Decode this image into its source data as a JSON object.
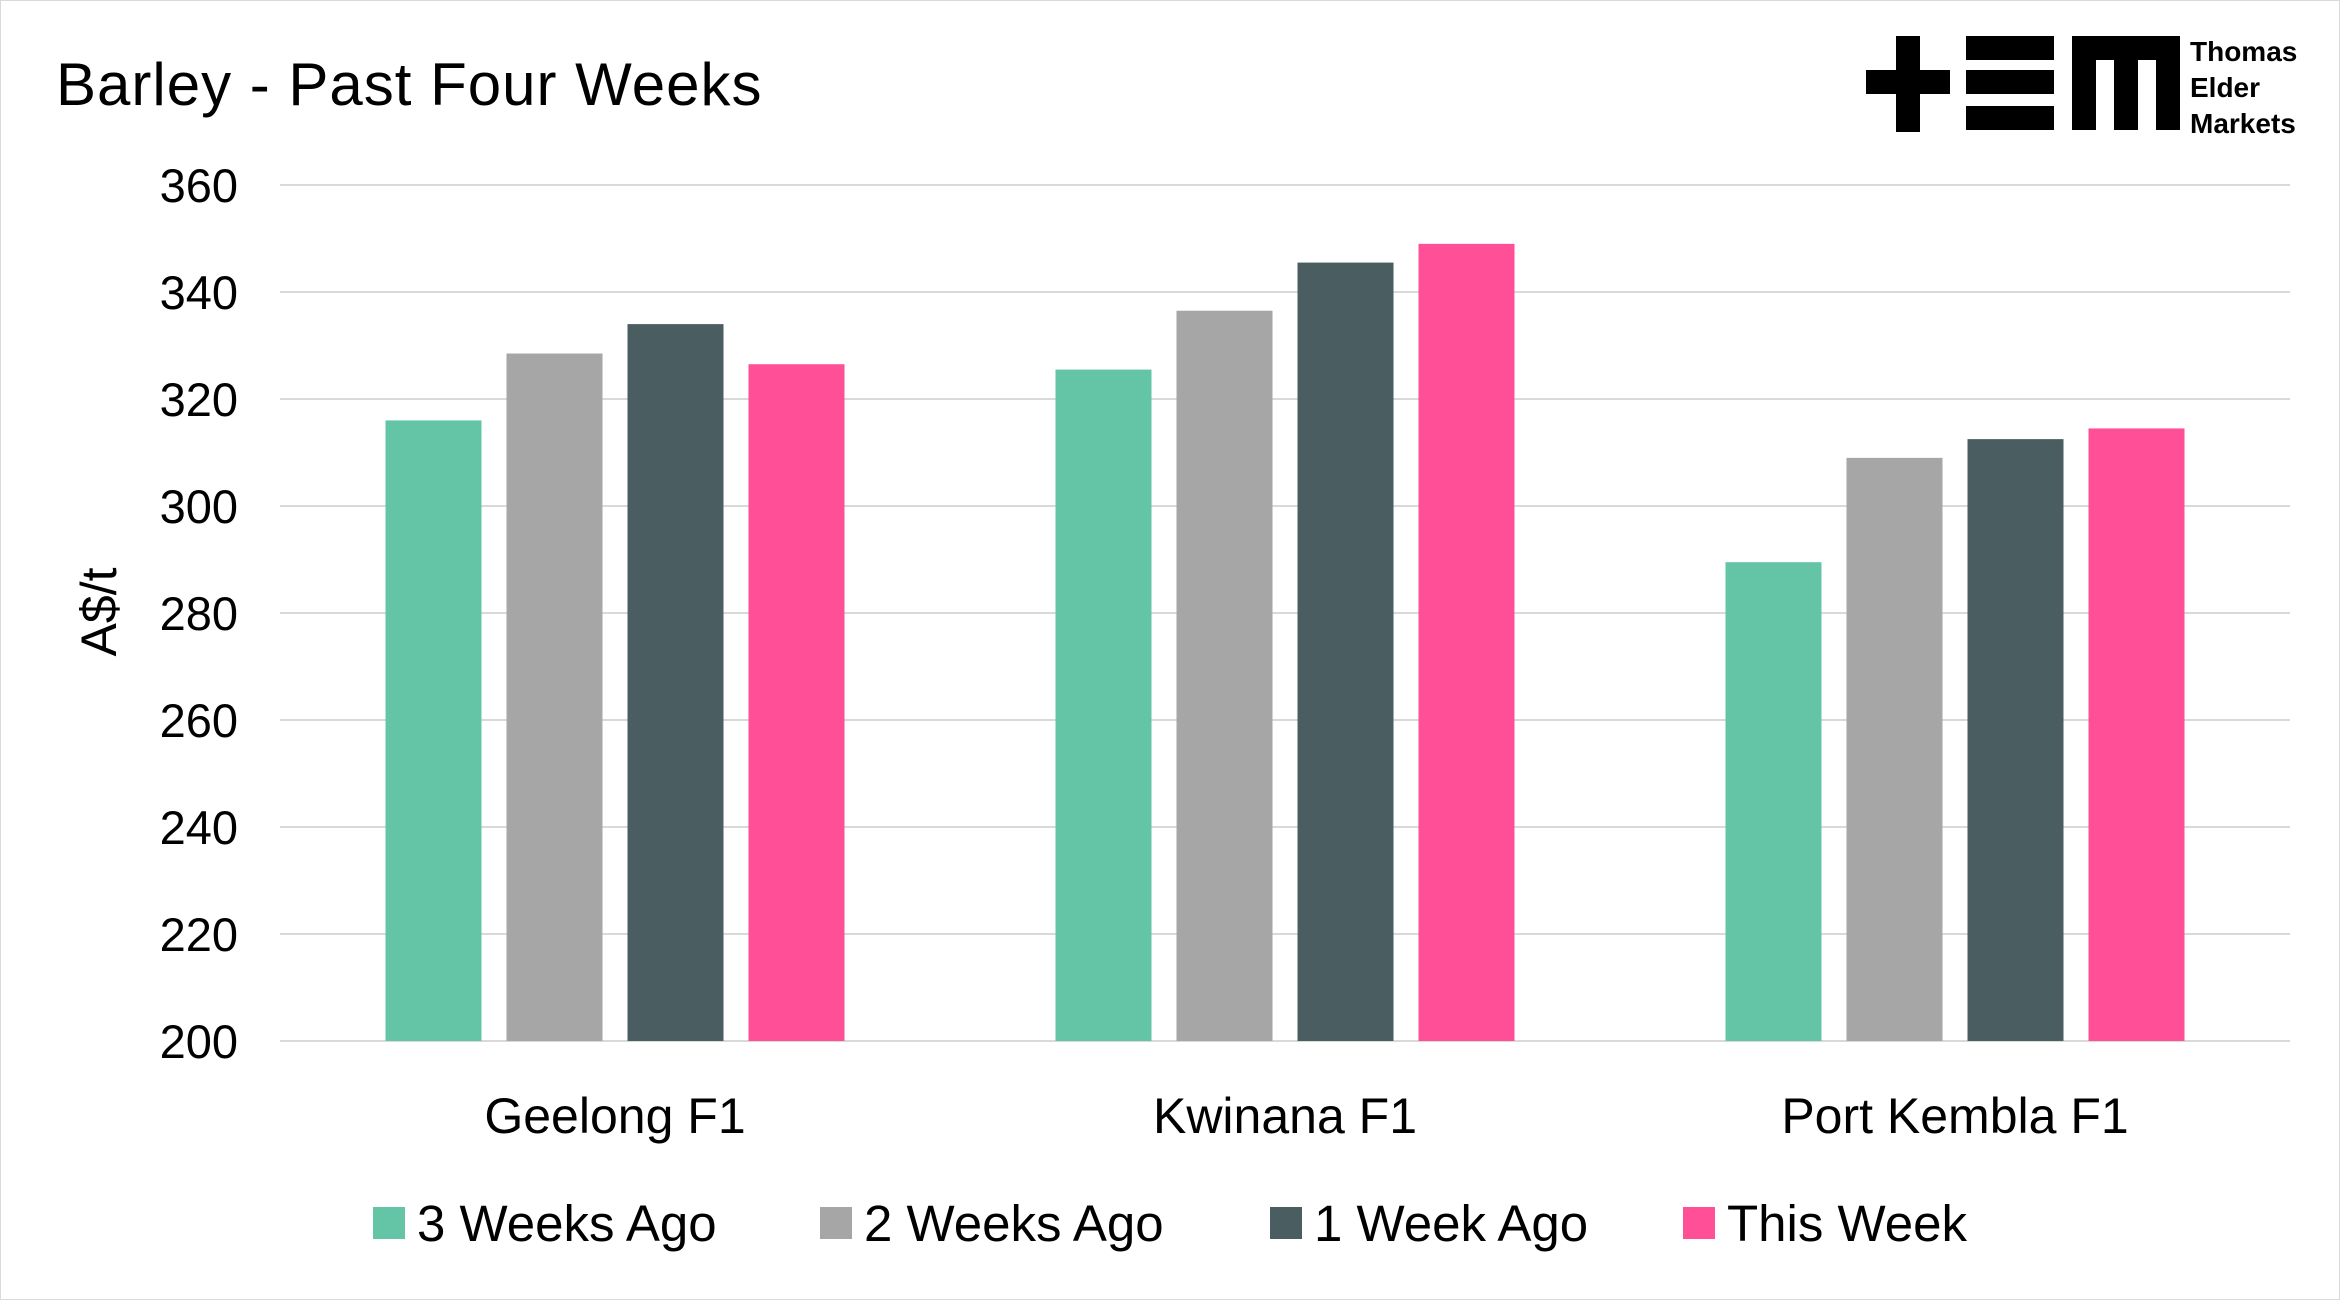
{
  "chart_data": {
    "type": "bar",
    "title": "Barley - Past Four Weeks",
    "ylabel": "A$/t",
    "xlabel": "",
    "ylim": [
      200,
      360
    ],
    "yticks": [
      200,
      220,
      240,
      260,
      280,
      300,
      320,
      340,
      360
    ],
    "grid": true,
    "legend_position": "bottom",
    "categories": [
      "Geelong F1",
      "Kwinana F1",
      "Port Kembla F1"
    ],
    "series": [
      {
        "name": "3 Weeks Ago",
        "color": "#63c5a6",
        "values": [
          316,
          325.5,
          289.5
        ]
      },
      {
        "name": "2 Weeks Ago",
        "color": "#a6a6a6",
        "values": [
          328.5,
          336.5,
          309
        ]
      },
      {
        "name": "1 Week Ago",
        "color": "#4a5d60",
        "values": [
          334,
          345.5,
          312.5
        ]
      },
      {
        "name": "This Week",
        "color": "#ff4f97",
        "values": [
          326.5,
          349,
          314.5
        ]
      }
    ]
  },
  "logo": {
    "lines": [
      "Thomas",
      "Elder",
      "Markets"
    ],
    "icon": "tem-logo-icon"
  }
}
